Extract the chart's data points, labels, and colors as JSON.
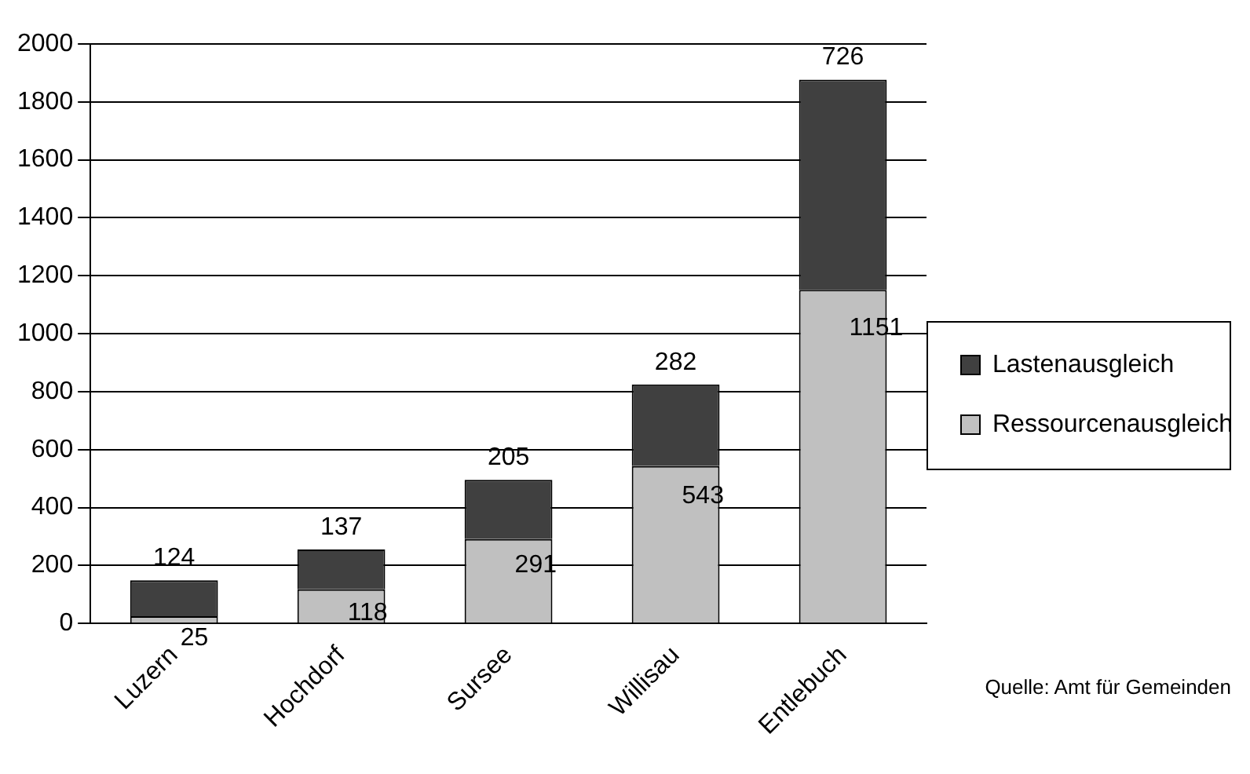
{
  "chart_data": {
    "type": "bar",
    "stacked": true,
    "categories": [
      "Luzern",
      "Hochdorf",
      "Sursee",
      "Willisau",
      "Entlebuch"
    ],
    "series": [
      {
        "name": "Ressourcenausgleich",
        "color": "#c0c0c0",
        "values": [
          25,
          118,
          291,
          543,
          1151
        ]
      },
      {
        "name": "Lastenausgleich",
        "color": "#404040",
        "values": [
          124,
          137,
          205,
          282,
          726
        ]
      }
    ],
    "ylim": [
      0,
      2000
    ],
    "yticks": [
      0,
      200,
      400,
      600,
      800,
      1000,
      1200,
      1400,
      1600,
      1800,
      2000
    ],
    "grid": "y",
    "legend": "right",
    "data_labels": true,
    "annotations": [
      "Quelle: Amt für Gemeinden"
    ]
  }
}
